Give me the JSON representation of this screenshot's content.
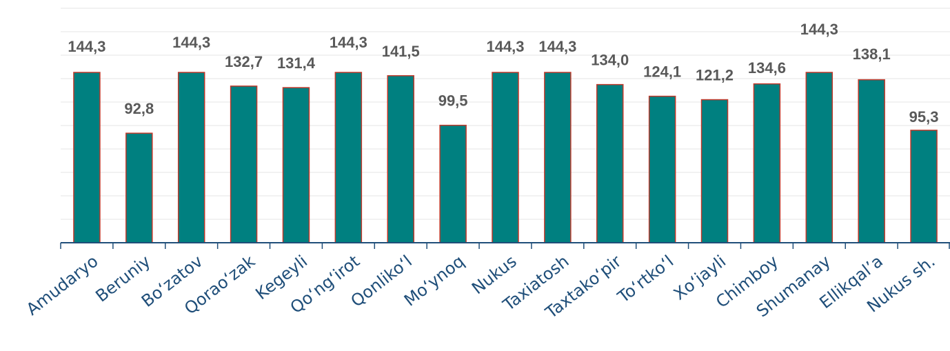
{
  "chart_data": {
    "type": "bar",
    "title": "",
    "xlabel": "",
    "ylabel": "",
    "ylim": [
      0,
      150
    ],
    "grid": true,
    "categories": [
      "Amudaryo",
      "Beruniy",
      "Bo‘zatov",
      "Qorao‘zak",
      "Kegeyli",
      "Qo‘ng‘irot",
      "Qonliko‘l",
      "Mo‘ynoq",
      "Nukus",
      "Taxiatosh",
      "Taxtako‘pir",
      "To‘rtko‘l",
      "Xo‘jayli",
      "Chimboy",
      "Shumanay",
      "Ellikqal’a",
      "Nukus sh."
    ],
    "values": [
      144.3,
      92.8,
      144.3,
      132.7,
      131.4,
      144.3,
      141.5,
      99.5,
      144.3,
      144.3,
      134.0,
      124.1,
      121.2,
      134.6,
      144.3,
      138.1,
      95.3
    ],
    "value_labels": [
      "144,3",
      "92,8",
      "144,3",
      "132,7",
      "131,4",
      "144,3",
      "141,5",
      "99,5",
      "144,3",
      "144,3",
      "134,0",
      "124,1",
      "121,2",
      "134,6",
      "144,3",
      "138,1",
      "95,3"
    ],
    "bar_color": "#008080",
    "bar_border_color": "#c0392b",
    "axis_color": "#1f4e79",
    "label_color": "#595959"
  }
}
